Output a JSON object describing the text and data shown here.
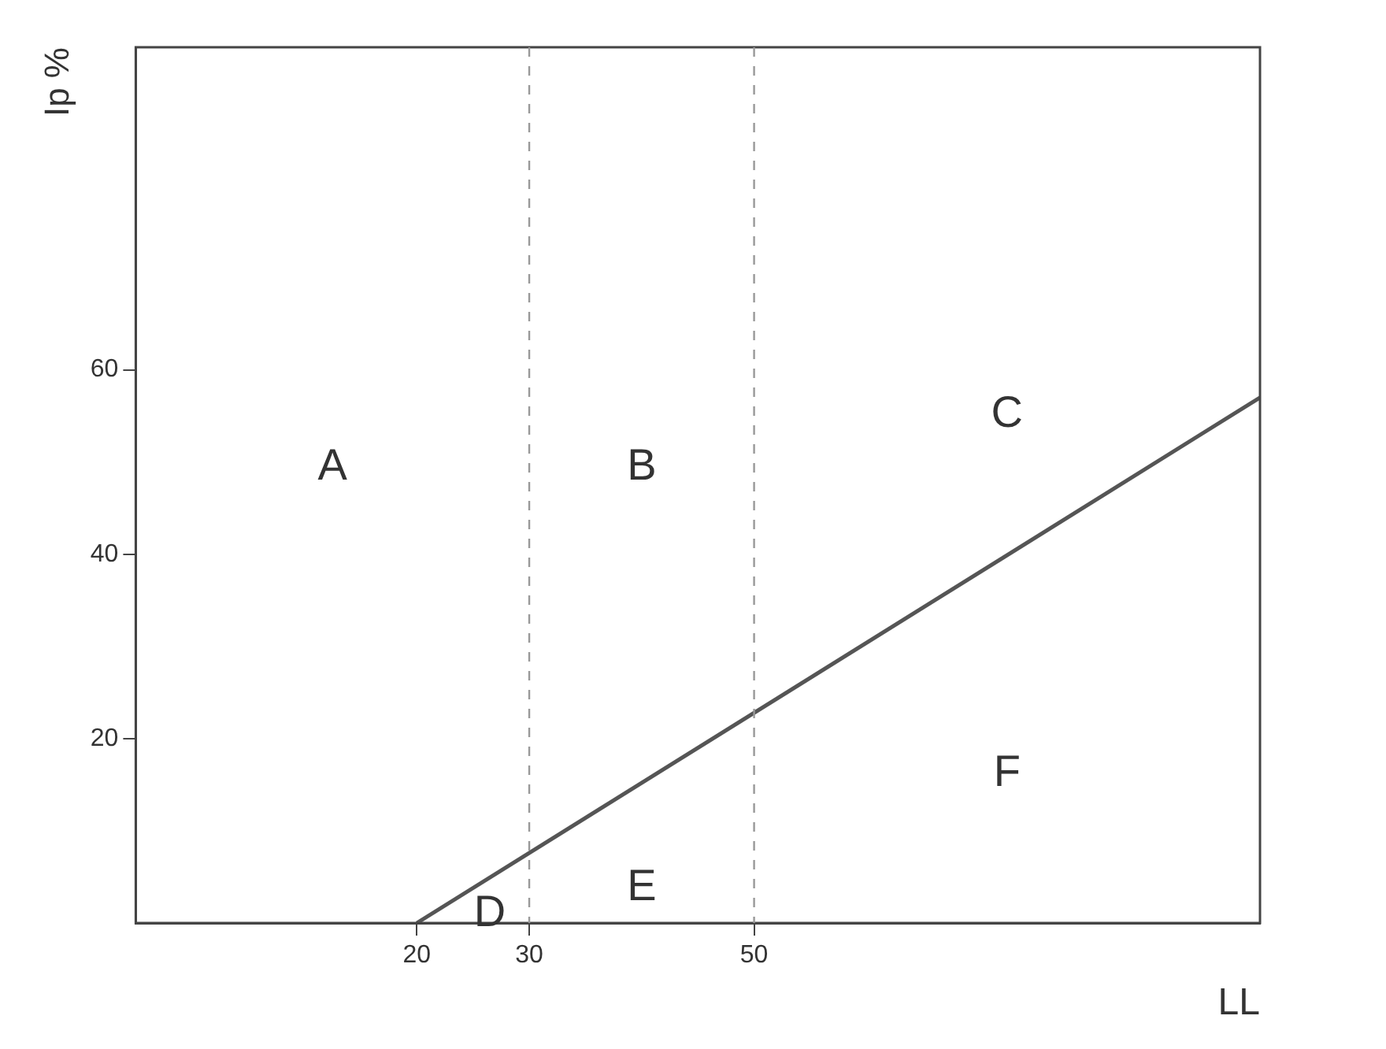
{
  "chart_data": {
    "type": "line",
    "xlabel": "LL",
    "ylabel": "Ip %",
    "series": [
      {
        "color": "#555555",
        "x": [
          20,
          95
        ],
        "values": [
          0,
          57
        ]
      }
    ],
    "xlim": [
      -5,
      95
    ],
    "ylim": [
      0,
      95
    ],
    "xticks": [
      20,
      30,
      50
    ],
    "yticks": [
      20,
      40,
      60
    ],
    "ref_lines": [
      {
        "axis": "x",
        "value": 30,
        "color": "#999999",
        "line_style": "dashed"
      },
      {
        "axis": "x",
        "value": 50,
        "color": "#999999",
        "line_style": "dashed"
      }
    ],
    "annotations": [
      "A",
      "B",
      "C",
      "D",
      "E",
      "F"
    ],
    "grid": false,
    "legend": false,
    "marker": "none",
    "line_style": "solid"
  }
}
